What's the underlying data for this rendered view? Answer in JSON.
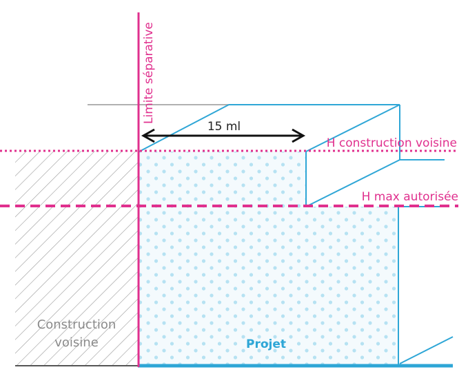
{
  "labels": {
    "limite_separative": "Limite séparative",
    "distance": "15 ml",
    "h_construction_voisine": "H construction voisine",
    "h_max_autorisee": "H max autorisée",
    "construction_voisine_line1": "Construction",
    "construction_voisine_line2": "voisine",
    "projet": "Projet"
  },
  "colors": {
    "magenta": "#e0308e",
    "blue": "#2ea6d6",
    "light_blue": "#8fd3ec",
    "grey": "#b0b0b0",
    "black": "#111111"
  }
}
